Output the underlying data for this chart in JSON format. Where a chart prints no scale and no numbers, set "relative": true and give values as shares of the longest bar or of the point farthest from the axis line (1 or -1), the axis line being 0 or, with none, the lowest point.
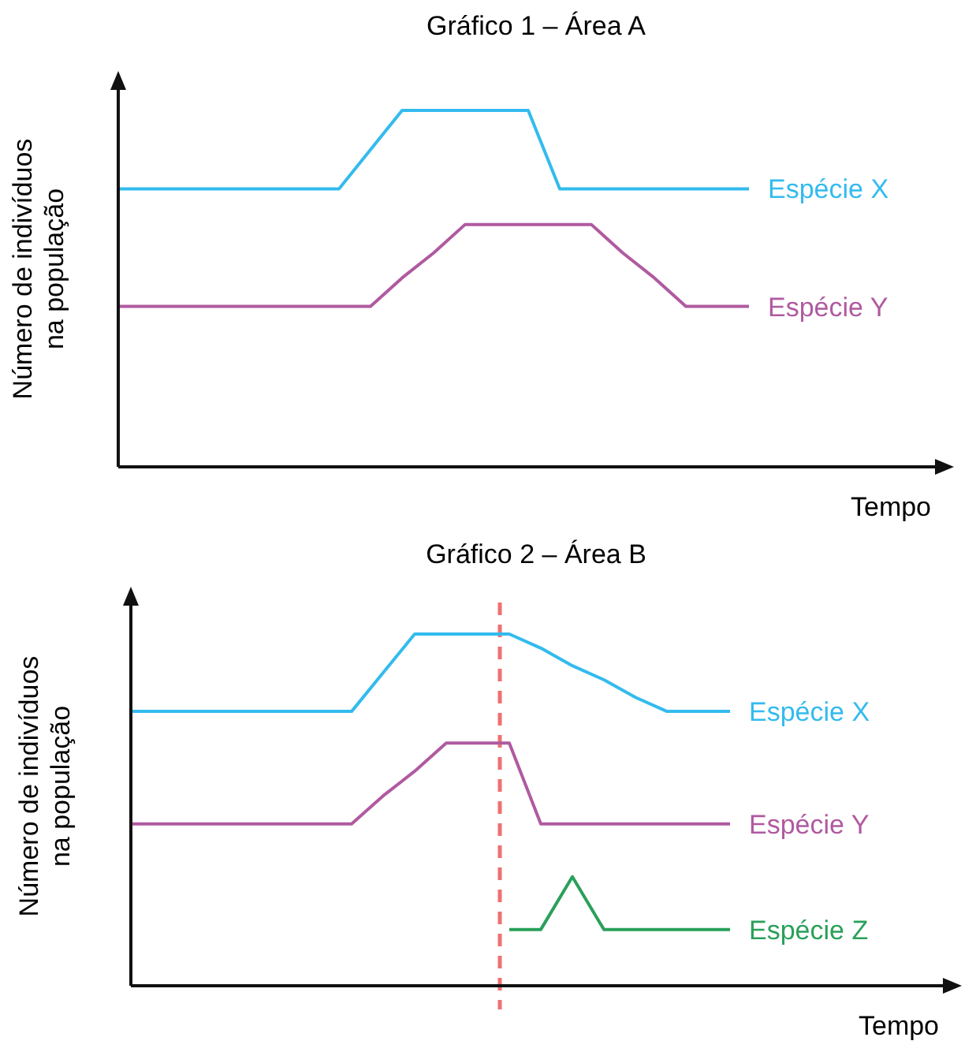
{
  "chart_data": [
    {
      "type": "line",
      "title": "Gráfico 1 – Área A",
      "xlabel": "Tempo",
      "ylabel": "Número de indivíduos\nna população",
      "relative": true,
      "marker": "none",
      "line_style": "solid",
      "categories": [
        null,
        null,
        null,
        null,
        null,
        null,
        null,
        null,
        null,
        null,
        null,
        null,
        null,
        null,
        null,
        null,
        null,
        null,
        null,
        null,
        null
      ],
      "series": [
        {
          "name": "Espécie X",
          "color": "#33bbee",
          "values": [
            0.78,
            0.78,
            0.78,
            0.78,
            0.78,
            0.78,
            0.78,
            0.78,
            0.89,
            1,
            1,
            1,
            1,
            1,
            0.78,
            0.78,
            0.78,
            0.78,
            0.78,
            0.78,
            0.78
          ]
        },
        {
          "name": "Espécie Y",
          "color": "#b05aa0",
          "values": [
            0.45,
            0.45,
            0.45,
            0.45,
            0.45,
            0.45,
            0.45,
            0.45,
            0.45,
            0.53,
            0.6,
            0.68,
            0.68,
            0.68,
            0.68,
            0.68,
            0.6,
            0.53,
            0.45,
            0.45,
            0.45
          ]
        }
      ]
    },
    {
      "type": "line",
      "title": "Gráfico 2 – Área B",
      "xlabel": "Tempo",
      "ylabel": "Número de indivíduos\nna população",
      "relative": true,
      "marker": "none",
      "line_style": "solid",
      "categories": [
        null,
        null,
        null,
        null,
        null,
        null,
        null,
        null,
        null,
        null,
        null,
        null,
        null,
        null,
        null,
        null,
        null,
        null,
        null,
        null
      ],
      "series": [
        {
          "name": "Espécie X",
          "color": "#33bbee",
          "values": [
            0.78,
            0.78,
            0.78,
            0.78,
            0.78,
            0.78,
            0.78,
            0.78,
            0.89,
            1,
            1,
            1,
            1,
            0.96,
            0.91,
            0.87,
            0.82,
            0.78,
            0.78,
            0.78
          ]
        },
        {
          "name": "Espécie Y",
          "color": "#b05aa0",
          "values": [
            0.46,
            0.46,
            0.46,
            0.46,
            0.46,
            0.46,
            0.46,
            0.46,
            0.54,
            0.61,
            0.69,
            0.69,
            0.69,
            0.46,
            0.46,
            0.46,
            0.46,
            0.46,
            0.46,
            0.46
          ]
        },
        {
          "name": "Espécie Z",
          "color": "#2aa05a",
          "values": [
            null,
            null,
            null,
            null,
            null,
            null,
            null,
            null,
            null,
            null,
            null,
            null,
            0.16,
            0.16,
            0.31,
            0.16,
            0.16,
            0.16,
            0.16,
            0.16
          ]
        }
      ]
    }
  ]
}
